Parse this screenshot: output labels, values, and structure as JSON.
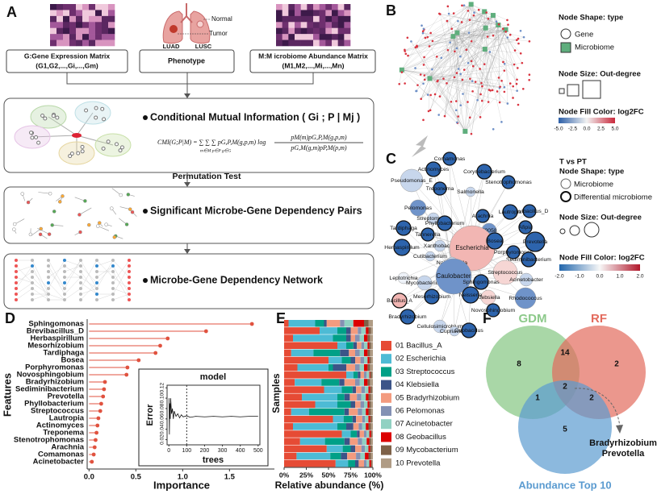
{
  "panel_labels": [
    "A",
    "B",
    "C",
    "D",
    "E",
    "F"
  ],
  "panel_a": {
    "inputs": [
      {
        "title": "G:Gene Expression Matrix",
        "subtitle": "(G1,G2,...,Gi,...,Gm)"
      },
      {
        "title": "Phenotype"
      },
      {
        "title": "M:M icrobiome Abundance Matrix",
        "subtitle": "(M1,M2,...,Mi,...,Mn)"
      }
    ],
    "lung_labels": [
      "Normal",
      "Tumor",
      "LUAD",
      "LUSC"
    ],
    "steps": [
      "Conditional Mutual Information ( Gi ; P | Mj )",
      "Significant Microbe-Gene Dependency Pairs",
      "Microbe-Gene Dependency Network"
    ],
    "formula": {
      "lhs": "CMI(G;P|M) = ∑ ∑ ∑ pG,P,M(g,p,m) log",
      "indices": "m∈M  p∈P  g∈G",
      "numerator": "pM(m)pG,P,M(g,p,m)",
      "denominator": "pG,M(g,m)pP,M(p,m)"
    },
    "permutation": "Permutation Test"
  },
  "panel_b": {
    "shape_title": "Node Shape:  type",
    "shapes": [
      "Gene",
      "Microbiome"
    ],
    "size_title": "Node Size:  Out-degree",
    "color_title": "Node Fill Color:  log2FC",
    "color_ticks": [
      "-5.0",
      "-2.5",
      "0.0",
      "2.5",
      "5.0"
    ]
  },
  "panel_c": {
    "group": "T vs PT",
    "shape_title": "Node Shape:  type",
    "shapes": [
      "Microbiome",
      "Differential microbiome"
    ],
    "size_title": "Node Size:  Out-degree",
    "color_title": "Node Fill Color:  log2FC",
    "color_ticks": [
      "-2.0",
      "-1.0",
      "0.0",
      "1.0",
      "2.0"
    ],
    "nodes": [
      "Comamonas",
      "Actinomyces",
      "Corynebacterium",
      "Pseudomonas_E",
      "Stenotrophomonas",
      "Treponema",
      "Salmonella",
      "Pelomonas",
      "Streptomyces",
      "Brevibacillus_D",
      "Lautropia",
      "Arachnia",
      "Phyllobacterium",
      "F0058",
      "Afipia",
      "Tardiphaga",
      "Tannerella",
      "Herbaspirillum",
      "Xanthobacter",
      "Escherichia",
      "Bosea",
      "Prevotella",
      "Cutibacterium",
      "Nakamurella",
      "Porphyromonas",
      "Sediminibacterium",
      "Streptococcus",
      "Acinetobacter",
      "Leptotrichia",
      "Mycobacterium",
      "Caulobacter",
      "Sphingomonas",
      "Rhodococcus",
      "Bacillus_A",
      "Klebsiella",
      "Mesorhizobium",
      "Neisseria",
      "Novosphingobium",
      "Bradyrhizobium",
      "Cellulosimicrobium",
      "Cupriavidus",
      "Geobacillus"
    ]
  },
  "chart_data": [
    {
      "type": "lollipop",
      "xlabel": "Importance",
      "ylabel": "Features",
      "color": "#e0523f",
      "categories": [
        "Sphingomonas",
        "Brevibacillus_D",
        "Herbaspirillum",
        "Mesorhizobium",
        "Tardiphaga",
        "Bosea",
        "Porphyromonas",
        "Novosphingobium",
        "Bradyrhizobium",
        "Sediminibacterium",
        "Prevotella",
        "Phyllobacterium",
        "Streptococcus",
        "Lautropia",
        "Actinomyces",
        "Treponema",
        "Stenotrophomonas",
        "Arachnia",
        "Comamonas",
        "Acinetobacter"
      ],
      "values": [
        1.74,
        1.25,
        0.84,
        0.76,
        0.71,
        0.53,
        0.41,
        0.4,
        0.17,
        0.16,
        0.15,
        0.13,
        0.12,
        0.1,
        0.09,
        0.08,
        0.07,
        0.06,
        0.05,
        0.03
      ],
      "xlim": [
        -0.02,
        1.98
      ],
      "xticks": [
        {
          "value": 0,
          "label": "0.0"
        },
        0.5,
        {
          "value": 1,
          "label": "1.0"
        },
        1.5
      ]
    },
    {
      "type": "line",
      "title": "model",
      "xlabel": "trees",
      "ylabel": "Error",
      "color": "#111111",
      "x": [
        1,
        3,
        5,
        8,
        10,
        15,
        20,
        25,
        30,
        40,
        50,
        60,
        70,
        80,
        100,
        120,
        150,
        200,
        250,
        300,
        350,
        400,
        450,
        500
      ],
      "y": [
        0.1,
        0.03,
        0.09,
        0.06,
        0.1,
        0.07,
        0.08,
        0.06,
        0.075,
        0.065,
        0.07,
        0.062,
        0.068,
        0.064,
        0.066,
        0.063,
        0.065,
        0.064,
        0.065,
        0.064,
        0.065,
        0.064,
        0.065,
        0.065
      ],
      "vline": 100,
      "xlim": [
        -10,
        510
      ],
      "xticks": [
        0,
        100,
        200,
        300,
        400,
        500
      ],
      "ylim": [
        0.01,
        0.125
      ],
      "yticks": [
        0.02,
        0.04,
        0.06,
        0.08,
        {
          "value": 0.1,
          "label": "0.10"
        },
        0.12
      ]
    },
    {
      "type": "stacked_bar",
      "xlabel": "Relative abundance (%)",
      "ylabel": "Samples",
      "xlim": [
        0,
        100
      ],
      "xticks": [
        {
          "value": 0,
          "label": "0%"
        },
        {
          "value": 25,
          "label": "25%"
        },
        {
          "value": 50,
          "label": "50%"
        },
        {
          "value": 75,
          "label": "75%"
        },
        {
          "value": 100,
          "label": "100%"
        }
      ],
      "series": [
        {
          "name": "01 Bacillus_A",
          "color": "#e64b35",
          "values": [
            5,
            40,
            10,
            60,
            8,
            50,
            15,
            70,
            12,
            45,
            20,
            35,
            8,
            55,
            10,
            65,
            18,
            48,
            14,
            58
          ]
        },
        {
          "name": "02 Escherichia",
          "color": "#4dbbd5",
          "values": [
            30,
            20,
            45,
            10,
            25,
            15,
            35,
            8,
            30,
            20,
            40,
            25,
            20,
            12,
            50,
            10,
            28,
            18,
            38,
            14
          ]
        },
        {
          "name": "03 Streptococcus",
          "color": "#00a087",
          "values": [
            10,
            10,
            15,
            8,
            30,
            10,
            5,
            5,
            20,
            12,
            8,
            15,
            40,
            10,
            10,
            7,
            22,
            9,
            12,
            8
          ]
        },
        {
          "name": "04 Klebsiella",
          "color": "#3c5488",
          "values": [
            3,
            5,
            5,
            4,
            10,
            5,
            15,
            3,
            6,
            4,
            6,
            5,
            5,
            4,
            8,
            3,
            6,
            5,
            7,
            4
          ]
        },
        {
          "name": "05 Bradyrhizobium",
          "color": "#f39b7f",
          "values": [
            15,
            8,
            5,
            5,
            7,
            6,
            10,
            4,
            12,
            6,
            8,
            6,
            10,
            7,
            6,
            5,
            9,
            7,
            10,
            6
          ]
        },
        {
          "name": "06 Pelomonas",
          "color": "#8491b4",
          "values": [
            5,
            4,
            5,
            3,
            5,
            4,
            5,
            3,
            5,
            4,
            5,
            4,
            5,
            3,
            4,
            3,
            5,
            4,
            5,
            3
          ]
        },
        {
          "name": "07 Acinetobacter",
          "color": "#91d1c2",
          "values": [
            10,
            5,
            5,
            4,
            5,
            4,
            5,
            3,
            5,
            4,
            5,
            4,
            4,
            4,
            4,
            3,
            5,
            4,
            5,
            3
          ]
        },
        {
          "name": "08 Geobacillus",
          "color": "#dc0000",
          "values": [
            12,
            3,
            4,
            2,
            4,
            2,
            4,
            1,
            4,
            2,
            3,
            2,
            3,
            2,
            3,
            2,
            3,
            2,
            4,
            2
          ]
        },
        {
          "name": "09 Mycobacterium",
          "color": "#7e6148",
          "values": [
            5,
            3,
            3,
            2,
            3,
            2,
            3,
            2,
            3,
            2,
            3,
            2,
            3,
            2,
            3,
            1,
            2,
            2,
            3,
            1
          ]
        },
        {
          "name": "10 Prevotella",
          "color": "#b09c85",
          "values": [
            5,
            2,
            3,
            2,
            3,
            2,
            3,
            1,
            3,
            1,
            2,
            2,
            2,
            1,
            2,
            1,
            2,
            1,
            2,
            1
          ]
        }
      ]
    }
  ],
  "panel_f": {
    "sets": [
      "GDM",
      "RF",
      "Abundance Top 10"
    ],
    "regions": [
      8,
      14,
      2,
      2,
      1,
      2,
      5
    ],
    "annotation": [
      "Bradyrhizobium",
      "Prevotella"
    ]
  }
}
